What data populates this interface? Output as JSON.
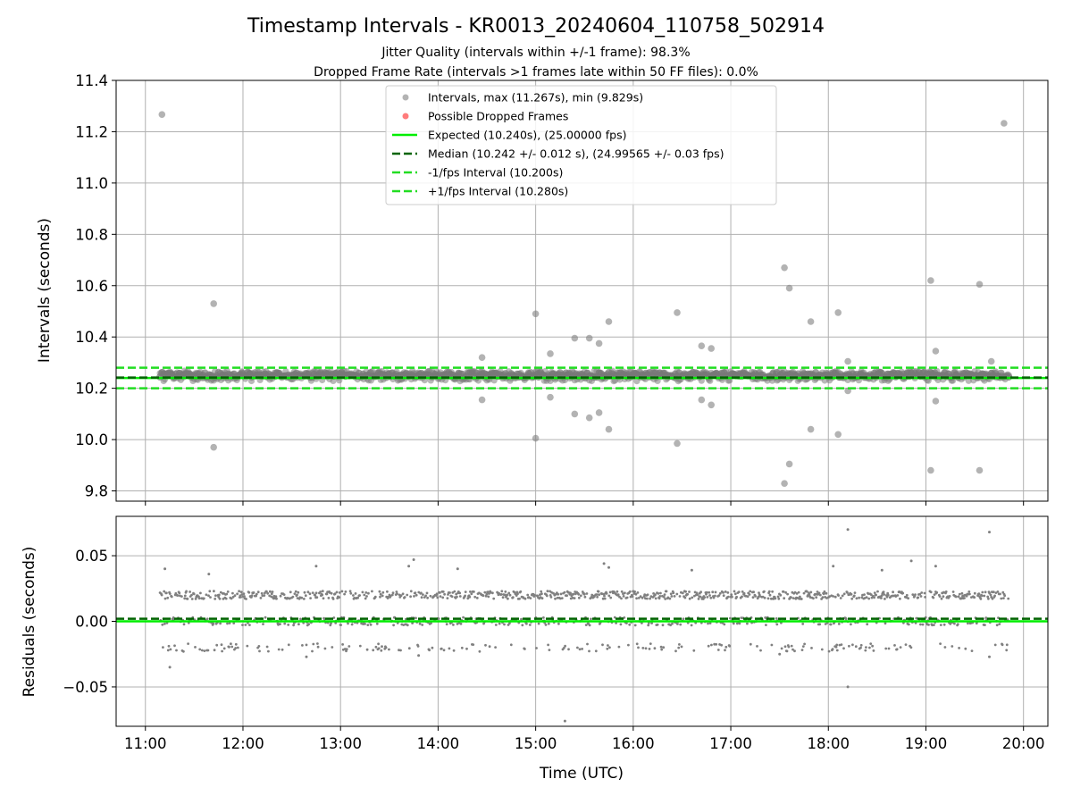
{
  "chart_data": {
    "type": "scatter",
    "title": "Timestamp Intervals - KR0013_20240604_110758_502914",
    "subtitle_1": "Jitter Quality (intervals within +/-1 frame): 98.3%",
    "subtitle_2": "Dropped Frame Rate (intervals >1 frames late within 50 FF files): 0.0%",
    "xlabel": "Time (UTC)",
    "x_ticks": [
      "11:00",
      "12:00",
      "13:00",
      "14:00",
      "15:00",
      "16:00",
      "17:00",
      "18:00",
      "19:00",
      "20:00"
    ],
    "xlim_hours": [
      10.7,
      20.25
    ],
    "colors": {
      "points": "#808080",
      "dropped": "#ff4444",
      "expected": "#00ee00",
      "median": "#006400",
      "interval_lines": "#22dd22",
      "grid": "#b0b0b0"
    },
    "top_panel": {
      "ylabel": "Intervals (seconds)",
      "ylim": [
        9.76,
        11.4
      ],
      "y_ticks": [
        "11.4",
        "11.2",
        "11.0",
        "10.8",
        "10.6",
        "10.4",
        "10.2",
        "10.0",
        "9.8"
      ],
      "grid": true,
      "legend_position": "upper center",
      "legend": [
        "Intervals, max (11.267s), min (9.829s)",
        "Possible Dropped Frames",
        "Expected (10.240s), (25.00000 fps)",
        "Median (10.242 +/- 0.012 s), (24.99565 +/- 0.03 fps)",
        "-1/fps Interval (10.200s)",
        "+1/fps Interval (10.280s)"
      ],
      "expected": 10.24,
      "median": 10.242,
      "minus_interval": 10.2,
      "plus_interval": 10.28,
      "band": {
        "x_start": 11.15,
        "x_end": 19.85,
        "low": 10.228,
        "high": 10.268
      },
      "outliers": [
        {
          "x": 11.17,
          "y": 11.267
        },
        {
          "x": 11.7,
          "y": 10.53
        },
        {
          "x": 11.7,
          "y": 9.97
        },
        {
          "x": 14.45,
          "y": 10.32
        },
        {
          "x": 14.45,
          "y": 10.155
        },
        {
          "x": 15.0,
          "y": 10.49
        },
        {
          "x": 15.0,
          "y": 10.005
        },
        {
          "x": 15.15,
          "y": 10.335
        },
        {
          "x": 15.15,
          "y": 10.165
        },
        {
          "x": 15.4,
          "y": 10.395
        },
        {
          "x": 15.4,
          "y": 10.1
        },
        {
          "x": 15.55,
          "y": 10.395
        },
        {
          "x": 15.55,
          "y": 10.085
        },
        {
          "x": 15.65,
          "y": 10.375
        },
        {
          "x": 15.65,
          "y": 10.105
        },
        {
          "x": 15.75,
          "y": 10.46
        },
        {
          "x": 15.75,
          "y": 10.04
        },
        {
          "x": 16.45,
          "y": 10.495
        },
        {
          "x": 16.45,
          "y": 9.985
        },
        {
          "x": 16.7,
          "y": 10.365
        },
        {
          "x": 16.7,
          "y": 10.155
        },
        {
          "x": 16.8,
          "y": 10.355
        },
        {
          "x": 16.8,
          "y": 10.135
        },
        {
          "x": 17.55,
          "y": 10.67
        },
        {
          "x": 17.55,
          "y": 9.829
        },
        {
          "x": 17.6,
          "y": 10.59
        },
        {
          "x": 17.6,
          "y": 9.905
        },
        {
          "x": 17.82,
          "y": 10.46
        },
        {
          "x": 17.82,
          "y": 10.04
        },
        {
          "x": 18.1,
          "y": 10.495
        },
        {
          "x": 18.1,
          "y": 10.02
        },
        {
          "x": 18.2,
          "y": 10.305
        },
        {
          "x": 18.2,
          "y": 10.19
        },
        {
          "x": 19.05,
          "y": 10.62
        },
        {
          "x": 19.05,
          "y": 9.88
        },
        {
          "x": 19.1,
          "y": 10.345
        },
        {
          "x": 19.1,
          "y": 10.15
        },
        {
          "x": 19.55,
          "y": 10.605
        },
        {
          "x": 19.55,
          "y": 9.88
        },
        {
          "x": 19.67,
          "y": 10.305
        },
        {
          "x": 19.8,
          "y": 11.233
        }
      ]
    },
    "bottom_panel": {
      "ylabel": "Residuals (seconds)",
      "ylim": [
        -0.08,
        0.08
      ],
      "y_ticks": [
        "0.05",
        "0.00",
        "−0.05"
      ],
      "grid": true,
      "expected": 0.0,
      "median": 0.002,
      "clusters": [
        0.02,
        0.0,
        -0.02
      ],
      "x_start": 11.15,
      "x_end": 19.85,
      "outliers": [
        {
          "x": 11.2,
          "y": 0.04
        },
        {
          "x": 11.25,
          "y": -0.035
        },
        {
          "x": 11.65,
          "y": 0.036
        },
        {
          "x": 12.75,
          "y": 0.042
        },
        {
          "x": 12.65,
          "y": -0.027
        },
        {
          "x": 13.75,
          "y": 0.047
        },
        {
          "x": 13.7,
          "y": 0.042
        },
        {
          "x": 13.8,
          "y": -0.026
        },
        {
          "x": 14.2,
          "y": 0.04
        },
        {
          "x": 15.3,
          "y": -0.076
        },
        {
          "x": 15.7,
          "y": 0.044
        },
        {
          "x": 15.75,
          "y": 0.041
        },
        {
          "x": 16.6,
          "y": 0.039
        },
        {
          "x": 17.5,
          "y": -0.025
        },
        {
          "x": 18.05,
          "y": 0.042
        },
        {
          "x": 18.2,
          "y": 0.07
        },
        {
          "x": 18.2,
          "y": -0.05
        },
        {
          "x": 18.55,
          "y": 0.039
        },
        {
          "x": 18.85,
          "y": 0.046
        },
        {
          "x": 19.1,
          "y": 0.042
        },
        {
          "x": 19.65,
          "y": 0.068
        },
        {
          "x": 19.65,
          "y": -0.027
        }
      ]
    }
  }
}
